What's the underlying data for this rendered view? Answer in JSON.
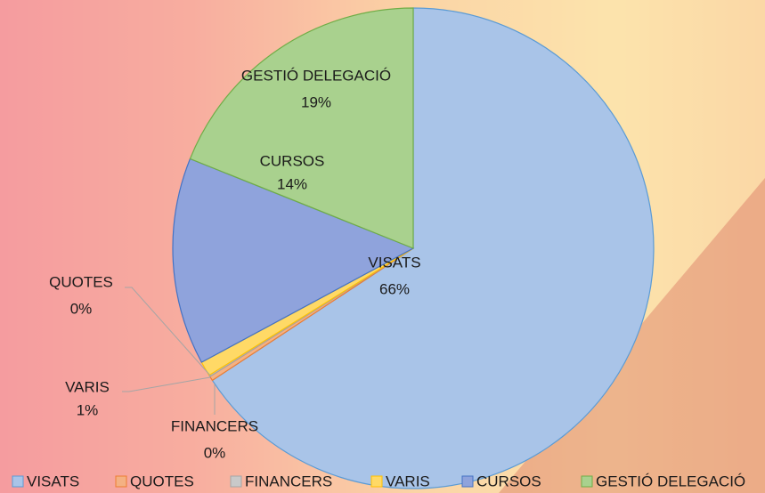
{
  "chart_data": {
    "type": "pie",
    "categories": [
      "VISATS",
      "QUOTES",
      "FINANCERS",
      "VARIS",
      "CURSOS",
      "GESTIÓ DELEGACIÓ"
    ],
    "values": [
      66,
      0.3,
      0.1,
      1,
      14,
      19
    ],
    "value_labels": [
      "66%",
      "0%",
      "0%",
      "1%",
      "14%",
      "19%"
    ],
    "colors": [
      "#a9c4e8",
      "#f4b183",
      "#c9c9c9",
      "#ffd966",
      "#8fa3dc",
      "#a9d18e"
    ],
    "legend": "bottom"
  }
}
